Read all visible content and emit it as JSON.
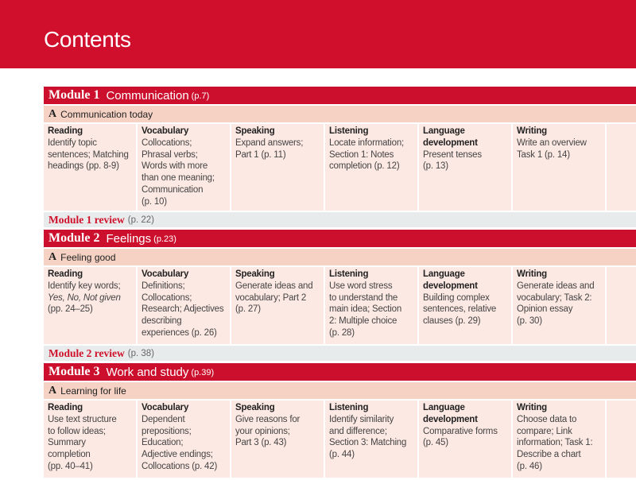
{
  "header": {
    "title": "Contents"
  },
  "colors": {
    "brand_red": "#cf0f2c",
    "section_bg": "#f5d2c4",
    "cell_bg": "#fde9e3",
    "review_bg": "#e8ebeb"
  },
  "modules": [
    {
      "number": "Module 1",
      "title": "Communication",
      "page": "(p.7)",
      "section_letter": "A",
      "section_title": "Communication today",
      "cell_height": 109,
      "cells": [
        {
          "head": [
            "Reading"
          ],
          "lines": [
            "Identify topic",
            "sentences; Matching",
            "headings (pp. 8-9)"
          ]
        },
        {
          "head": [
            "Vocabulary"
          ],
          "lines": [
            "Collocations;",
            "Phrasal verbs;",
            "Words with more",
            "than one meaning;",
            "Communication",
            "(p. 10)"
          ]
        },
        {
          "head": [
            "Speaking"
          ],
          "lines": [
            "Expand answers;",
            "Part 1 (p. 11)"
          ]
        },
        {
          "head": [
            "Listening"
          ],
          "lines": [
            "Locate information;",
            "Section 1: Notes",
            "completion (p. 12)"
          ]
        },
        {
          "head": [
            "Language",
            "development"
          ],
          "lines": [
            "Present tenses",
            "(p. 13)"
          ]
        },
        {
          "head": [
            "Writing"
          ],
          "lines": [
            "Write an overview",
            "Task 1 (p. 14)"
          ]
        }
      ],
      "review_label": "Module 1 review",
      "review_page": "(p. 22)"
    },
    {
      "number": "Module 2",
      "title": "Feelings",
      "page": "(p.23)",
      "section_letter": "A",
      "section_title": "Feeling good",
      "cell_height": 97,
      "cells": [
        {
          "head": [
            "Reading"
          ],
          "lines": [
            "Identify key words;",
            "Yes, No, Not given",
            "(pp. 24–25)"
          ],
          "italic_lines": [
            1
          ]
        },
        {
          "head": [
            "Vocabulary"
          ],
          "lines": [
            "Definitions;",
            "Collocations;",
            "Research; Adjectives",
            "describing",
            "experiences (p. 26)"
          ]
        },
        {
          "head": [
            "Speaking"
          ],
          "lines": [
            "Generate ideas and",
            "vocabulary; Part 2",
            "(p. 27)"
          ]
        },
        {
          "head": [
            "Listening"
          ],
          "lines": [
            "Use word stress",
            "to understand the",
            "main idea;  Section",
            "2: Multiple choice",
            "(p. 28)"
          ]
        },
        {
          "head": [
            "Language",
            "development"
          ],
          "lines": [
            "Building complex",
            "sentences, relative",
            "clauses (p. 29)"
          ]
        },
        {
          "head": [
            "Writing"
          ],
          "lines": [
            "Generate ideas and",
            "vocabulary; Task 2:",
            "Opinion essay",
            "(p. 30)"
          ]
        }
      ],
      "review_label": "Module 2 review",
      "review_page": "(p. 38)"
    },
    {
      "number": "Module 3",
      "title": "Work and study",
      "page": "(p.39)",
      "section_letter": "A",
      "section_title": "Learning for life",
      "cell_height": 97,
      "cells": [
        {
          "head": [
            "Reading"
          ],
          "lines": [
            "Use text structure",
            "to follow ideas;",
            "Summary",
            "completion",
            "(pp. 40–41)"
          ]
        },
        {
          "head": [
            "Vocabulary"
          ],
          "lines": [
            "Dependent",
            "prepositions;",
            "Education;",
            "Adjective endings;",
            "Collocations (p. 42)"
          ]
        },
        {
          "head": [
            "Speaking"
          ],
          "lines": [
            "Give reasons for",
            "your opinions;",
            "Part 3 (p. 43)"
          ]
        },
        {
          "head": [
            "Listening"
          ],
          "lines": [
            "Identify similarity",
            "and difference;",
            "Section 3: Matching",
            "(p. 44)"
          ]
        },
        {
          "head": [
            "Language",
            "development"
          ],
          "lines": [
            "Comparative forms",
            "(p. 45)"
          ]
        },
        {
          "head": [
            "Writing"
          ],
          "lines": [
            "Choose data to",
            "compare; Link",
            "information; Task 1:",
            "Describe a chart",
            "(p. 46)"
          ]
        }
      ]
    }
  ]
}
